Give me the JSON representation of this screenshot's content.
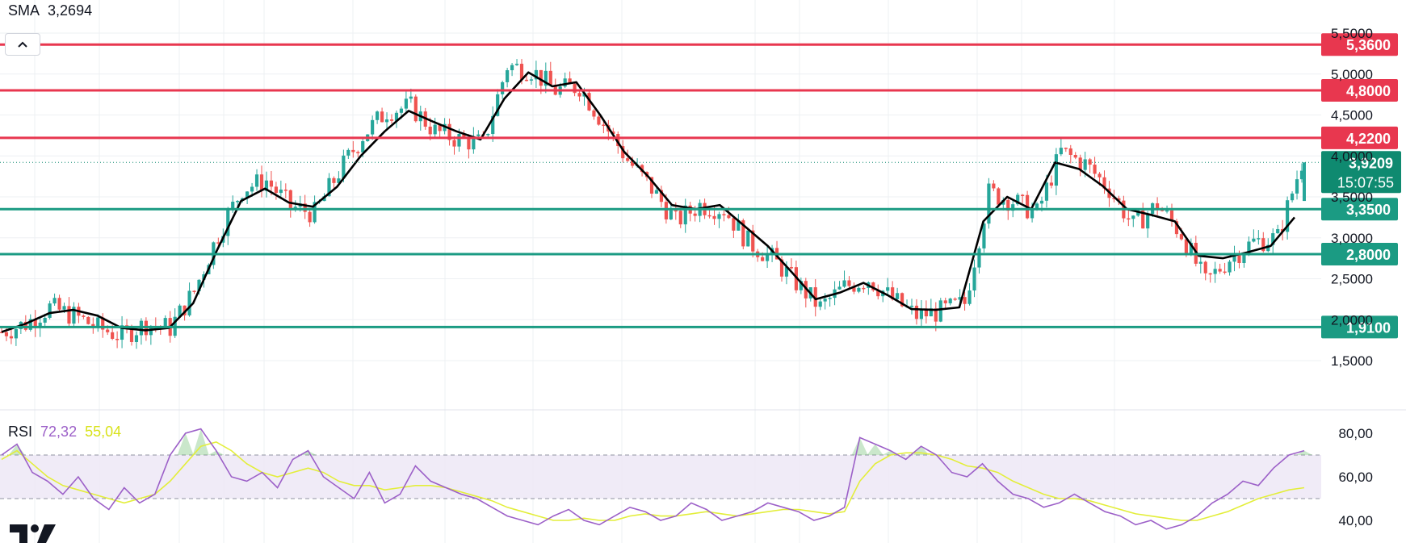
{
  "header": {
    "sma_label": "SMA",
    "sma_value": "3,2694",
    "rsi_label": "RSI",
    "rsi_value": "72,32",
    "rsi_ma_value": "55,04"
  },
  "colors": {
    "up": "#26a69a",
    "down": "#ef5350",
    "resistance": "#e8374f",
    "support": "#1b9b83",
    "sma": "#000000",
    "rsi": "#9c60c8",
    "rsi_ma": "#e3ee3a",
    "price_badge": "#0f8a70"
  },
  "icons": {
    "collapse": "chevron-up-icon",
    "logo": "tradingview-logo"
  },
  "chart_data": [
    {
      "type": "candlestick",
      "y_ticks": [
        "5,5000",
        "5,0000",
        "4,5000",
        "4,0000",
        "3,5000",
        "3,0000",
        "2,5000",
        "2,0000",
        "1,5000"
      ],
      "ylim": [
        1.45,
        5.7
      ],
      "grid": true,
      "sma_line": [
        1.85,
        1.95,
        2.08,
        2.12,
        2.05,
        1.9,
        1.87,
        1.9,
        2.2,
        2.85,
        3.45,
        3.6,
        3.43,
        3.38,
        3.62,
        4.0,
        4.3,
        4.55,
        4.42,
        4.3,
        4.2,
        4.7,
        5.02,
        4.85,
        4.9,
        4.5,
        4.05,
        3.75,
        3.4,
        3.35,
        3.4,
        3.15,
        2.9,
        2.58,
        2.25,
        2.33,
        2.45,
        2.3,
        2.13,
        2.12,
        2.15,
        3.2,
        3.5,
        3.35,
        3.92,
        3.84,
        3.63,
        3.35,
        3.28,
        3.2,
        2.78,
        2.75,
        2.82,
        2.9,
        3.25
      ],
      "candles_close": [
        1.85,
        1.95,
        2.15,
        2.05,
        1.9,
        1.8,
        1.95,
        1.9,
        2.35,
        3.05,
        3.6,
        3.7,
        3.38,
        3.3,
        3.8,
        4.25,
        4.55,
        4.6,
        4.3,
        4.2,
        4.15,
        5.1,
        5.05,
        4.8,
        4.85,
        4.4,
        3.95,
        3.6,
        3.2,
        3.4,
        3.35,
        2.95,
        2.75,
        2.45,
        2.15,
        2.4,
        2.5,
        2.25,
        2.05,
        2.1,
        2.2,
        3.55,
        3.45,
        3.3,
        4.05,
        3.9,
        3.6,
        3.15,
        3.4,
        3.05,
        2.45,
        2.75,
        2.95,
        3.0,
        3.92
      ],
      "resistance_levels": [
        {
          "label": "5,3600",
          "value": 5.36
        },
        {
          "label": "4,8000",
          "value": 4.8
        },
        {
          "label": "4,2200",
          "value": 4.22
        }
      ],
      "support_levels": [
        {
          "label": "3,3500",
          "value": 3.35
        },
        {
          "label": "2,8000",
          "value": 2.8
        },
        {
          "label": "1,9100",
          "value": 1.91
        }
      ],
      "last_price": {
        "value": 3.9209,
        "label": "3,9209",
        "countdown": "15:07:55"
      }
    },
    {
      "type": "line",
      "name": "RSI",
      "y_ticks": [
        "80,00",
        "60,00",
        "40,00"
      ],
      "ylim": [
        30,
        85
      ],
      "band": [
        50,
        70
      ],
      "rsi_line": [
        70,
        75,
        62,
        58,
        52,
        60,
        50,
        45,
        55,
        48,
        52,
        70,
        80,
        82,
        72,
        60,
        58,
        62,
        55,
        68,
        72,
        60,
        55,
        50,
        62,
        48,
        52,
        65,
        58,
        55,
        52,
        50,
        46,
        42,
        40,
        38,
        42,
        45,
        40,
        38,
        42,
        46,
        44,
        40,
        42,
        48,
        45,
        40,
        42,
        44,
        48,
        46,
        44,
        40,
        42,
        46,
        78,
        75,
        72,
        68,
        74,
        70,
        62,
        60,
        66,
        58,
        52,
        50,
        46,
        48,
        52,
        48,
        44,
        42,
        38,
        40,
        36,
        38,
        42,
        48,
        52,
        58,
        56,
        64,
        70,
        72
      ],
      "rsi_ma_line": [
        68,
        72,
        66,
        60,
        56,
        54,
        52,
        50,
        48,
        50,
        52,
        58,
        66,
        74,
        76,
        72,
        66,
        62,
        60,
        62,
        64,
        62,
        58,
        56,
        56,
        54,
        55,
        56,
        56,
        55,
        53,
        51,
        49,
        46,
        44,
        42,
        40,
        40,
        41,
        40,
        40,
        42,
        43,
        42,
        42,
        43,
        44,
        43,
        42,
        43,
        44,
        45,
        45,
        44,
        43,
        44,
        58,
        66,
        70,
        71,
        71,
        70,
        68,
        65,
        64,
        62,
        58,
        55,
        52,
        50,
        50,
        49,
        47,
        45,
        43,
        42,
        41,
        40,
        40,
        42,
        44,
        47,
        50,
        52,
        54,
        55
      ]
    }
  ]
}
